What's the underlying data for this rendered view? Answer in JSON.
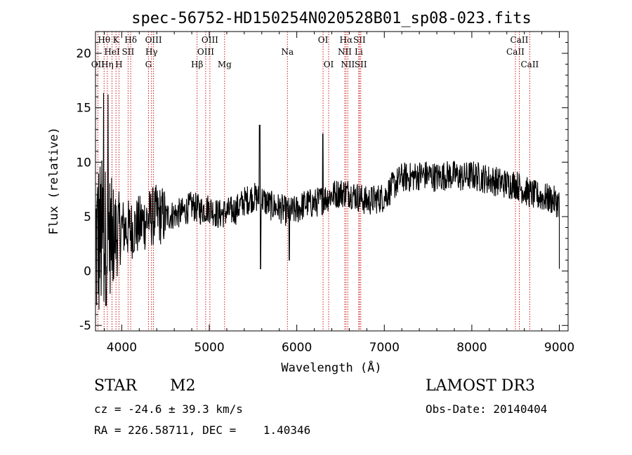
{
  "chart_data": {
    "type": "line",
    "title": "spec-56752-HD150254N020528B01_sp08-023.fits",
    "xlabel": "Wavelength (Å)",
    "ylabel": "Flux (relative)",
    "xlim": [
      3700,
      9100
    ],
    "ylim": [
      -5.5,
      22
    ],
    "xticks": [
      4000,
      5000,
      6000,
      7000,
      8000,
      9000
    ],
    "xtick_labels": [
      "4000",
      "5000",
      "6000",
      "7000",
      "8000",
      "9000"
    ],
    "yticks": [
      -5,
      0,
      5,
      10,
      15,
      20
    ],
    "ytick_labels": [
      "-5",
      "0",
      "5",
      "10",
      "15",
      "20"
    ],
    "spectrum_anchors": {
      "wavelength": [
        3700,
        3760,
        3800,
        3850,
        3900,
        3950,
        4000,
        4100,
        4200,
        4300,
        4400,
        4500,
        4600,
        4700,
        4800,
        4900,
        5000,
        5100,
        5200,
        5300,
        5400,
        5500,
        5600,
        5700,
        5800,
        5900,
        6000,
        6100,
        6200,
        6300,
        6400,
        6500,
        6600,
        6700,
        6800,
        6900,
        7000,
        7100,
        7200,
        7300,
        7400,
        7500,
        7600,
        7700,
        7800,
        7900,
        8000,
        8100,
        8200,
        8300,
        8400,
        8500,
        8600,
        8700,
        8800,
        8900,
        9000
      ],
      "flux": [
        2.5,
        3.0,
        3.0,
        3.5,
        3.2,
        3.5,
        4.0,
        3.8,
        4.2,
        4.8,
        5.2,
        5.0,
        5.2,
        5.4,
        6.0,
        5.6,
        5.8,
        5.2,
        5.4,
        5.6,
        6.4,
        6.8,
        6.6,
        6.0,
        5.8,
        5.4,
        5.6,
        6.2,
        6.2,
        6.6,
        7.0,
        7.2,
        7.2,
        6.8,
        6.4,
        6.6,
        6.8,
        7.8,
        8.6,
        8.6,
        8.8,
        8.8,
        8.6,
        8.8,
        8.8,
        8.6,
        8.8,
        8.6,
        8.4,
        8.2,
        8.0,
        8.0,
        7.4,
        7.0,
        6.8,
        6.6,
        6.2
      ],
      "note": "approximate continuum; noisy spectrum with sharp features near 5577 Å (peak ~13.5, dip ~0) and 6300 Å (peak ~12.6); strong noise below ~4000 Å (range about -5 to 18)"
    },
    "lines": [
      {
        "name": "OII",
        "wavelength": 3727,
        "row": 3
      },
      {
        "name": "Hθ",
        "wavelength": 3798,
        "row": 1
      },
      {
        "name": "Hη",
        "wavelength": 3835,
        "row": 3
      },
      {
        "name": "HeI",
        "wavelength": 3889,
        "row": 2
      },
      {
        "name": "K",
        "wavelength": 3934,
        "row": 1
      },
      {
        "name": "H",
        "wavelength": 3968,
        "row": 3
      },
      {
        "name": "SII",
        "wavelength": 4072,
        "row": 2
      },
      {
        "name": "Hδ",
        "wavelength": 4102,
        "row": 1
      },
      {
        "name": "G",
        "wavelength": 4305,
        "row": 3
      },
      {
        "name": "Hγ",
        "wavelength": 4340,
        "row": 2
      },
      {
        "name": "OIII",
        "wavelength": 4363,
        "row": 1
      },
      {
        "name": "Hβ",
        "wavelength": 4861,
        "row": 3
      },
      {
        "name": "OIII",
        "wavelength": 4959,
        "row": 2
      },
      {
        "name": "OIII",
        "wavelength": 5007,
        "row": 1
      },
      {
        "name": "Mg",
        "wavelength": 5175,
        "row": 3
      },
      {
        "name": "Na",
        "wavelength": 5893,
        "row": 2
      },
      {
        "name": "OI",
        "wavelength": 6300,
        "row": 1
      },
      {
        "name": "OI",
        "wavelength": 6364,
        "row": 3
      },
      {
        "name": "NII",
        "wavelength": 6548,
        "row": 2
      },
      {
        "name": "Hα",
        "wavelength": 6563,
        "row": 1
      },
      {
        "name": "NII",
        "wavelength": 6583,
        "row": 3
      },
      {
        "name": "Li",
        "wavelength": 6708,
        "row": 2
      },
      {
        "name": "SII",
        "wavelength": 6716,
        "row": 1
      },
      {
        "name": "SII",
        "wavelength": 6731,
        "row": 3
      },
      {
        "name": "CaII",
        "wavelength": 8498,
        "row": 2
      },
      {
        "name": "CaII",
        "wavelength": 8542,
        "row": 1
      },
      {
        "name": "CaII",
        "wavelength": 8662,
        "row": 3
      }
    ]
  },
  "info": {
    "class_label": "STAR",
    "subclass": "M2",
    "survey": "LAMOST DR3",
    "cz": "cz = -24.6 ± 39.3 km/s",
    "obs_date": "Obs-Date: 20140404",
    "radec": "RA = 226.58711, DEC =    1.40346"
  },
  "colors": {
    "line_marker": "#cc0000",
    "spectrum": "#000000",
    "axis": "#000000"
  }
}
